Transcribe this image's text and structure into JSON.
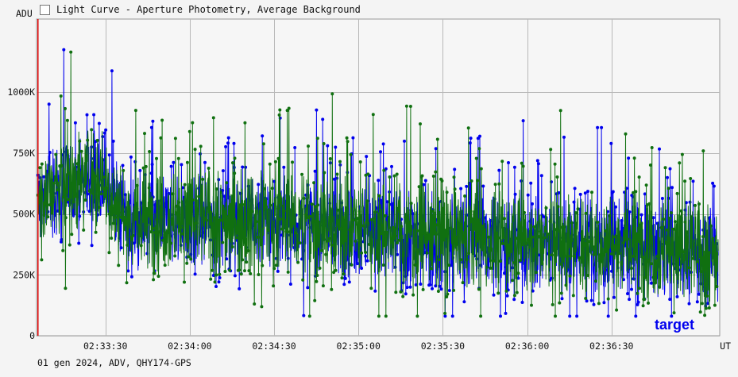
{
  "window": {
    "title": "Light Curve - Aperture Photometry, Average Background",
    "title_icon": "chart-icon"
  },
  "footer": {
    "info": "01 gen 2024, ADV, QHY174-GPS"
  },
  "chart_data": {
    "type": "line",
    "ylabel": "ADU",
    "xlabel": "UT",
    "y_ticks": [
      {
        "value": 0,
        "label": "0"
      },
      {
        "value": 250000,
        "label": "250K"
      },
      {
        "value": 500000,
        "label": "500K"
      },
      {
        "value": 750000,
        "label": "750K"
      },
      {
        "value": 1000000,
        "label": "1000K"
      }
    ],
    "x_ticks": [
      {
        "value": 0,
        "label": "02:33:30"
      },
      {
        "value": 30,
        "label": "02:34:00"
      },
      {
        "value": 60,
        "label": "02:34:30"
      },
      {
        "value": 90,
        "label": "02:35:00"
      },
      {
        "value": 120,
        "label": "02:35:30"
      },
      {
        "value": 150,
        "label": "02:36:00"
      },
      {
        "value": 180,
        "label": "02:36:30"
      }
    ],
    "x_range_seconds_from_02_33_30": [
      -24.5,
      218.5
    ],
    "ylim": [
      0,
      1300000
    ],
    "grid": true,
    "legend_placement": "bottom-right",
    "series": [
      {
        "name": "target",
        "color": "#0000ee",
        "trend": {
          "x": [
            -24,
            -15,
            -5,
            0,
            5,
            10,
            30,
            60,
            90,
            120,
            150,
            180,
            205,
            218
          ],
          "y": [
            560000,
            600000,
            660000,
            610000,
            500000,
            460000,
            470000,
            470000,
            430000,
            400000,
            380000,
            370000,
            340000,
            330000
          ]
        },
        "spread": 130000
      },
      {
        "color": "#107010",
        "trend": {
          "x": [
            -24,
            -15,
            -5,
            0,
            5,
            10,
            30,
            60,
            90,
            120,
            150,
            180,
            205,
            218
          ],
          "y": [
            570000,
            610000,
            670000,
            620000,
            510000,
            470000,
            480000,
            480000,
            440000,
            410000,
            390000,
            380000,
            350000,
            340000
          ]
        },
        "spread": 140000
      }
    ],
    "marker_line": {
      "x": -24,
      "color": "#dd0000"
    }
  }
}
